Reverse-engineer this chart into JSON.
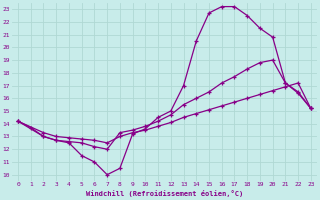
{
  "title": "Windchill (Refroidissement éolien,°C)",
  "bg_color": "#c8ecea",
  "grid_color": "#b0d8d4",
  "line_color": "#880088",
  "xlim": [
    -0.5,
    23.5
  ],
  "ylim": [
    9.5,
    23.5
  ],
  "xticks": [
    0,
    1,
    2,
    3,
    4,
    5,
    6,
    7,
    8,
    9,
    10,
    11,
    12,
    13,
    14,
    15,
    16,
    17,
    18,
    19,
    20,
    21,
    22,
    23
  ],
  "yticks": [
    10,
    11,
    12,
    13,
    14,
    15,
    16,
    17,
    18,
    19,
    20,
    21,
    22,
    23
  ],
  "line1_x": [
    0,
    1,
    2,
    3,
    4,
    5,
    6,
    7,
    8,
    9,
    10,
    11,
    12,
    13,
    14,
    15,
    16,
    17,
    18,
    19,
    20,
    21,
    22,
    23
  ],
  "line1_y": [
    14.2,
    13.7,
    13.0,
    12.7,
    12.5,
    11.5,
    11.0,
    10.0,
    10.5,
    13.2,
    13.6,
    14.5,
    15.0,
    17.0,
    20.5,
    22.7,
    23.2,
    23.2,
    22.5,
    21.5,
    20.8,
    17.2,
    16.4,
    15.2
  ],
  "line2_x": [
    0,
    2,
    3,
    4,
    5,
    6,
    7,
    8,
    9,
    10,
    11,
    12,
    13,
    14,
    15,
    16,
    17,
    18,
    19,
    20,
    21,
    22,
    23
  ],
  "line2_y": [
    14.2,
    13.0,
    12.7,
    12.6,
    12.5,
    12.2,
    12.0,
    13.3,
    13.5,
    13.8,
    14.2,
    14.7,
    15.5,
    16.0,
    16.5,
    17.2,
    17.7,
    18.3,
    18.8,
    19.0,
    17.2,
    16.5,
    15.2
  ],
  "line3_x": [
    0,
    2,
    3,
    4,
    5,
    6,
    7,
    8,
    9,
    10,
    11,
    12,
    13,
    14,
    15,
    16,
    17,
    18,
    19,
    20,
    21,
    22,
    23
  ],
  "line3_y": [
    14.2,
    13.3,
    13.0,
    12.9,
    12.8,
    12.7,
    12.5,
    13.0,
    13.3,
    13.5,
    13.8,
    14.1,
    14.5,
    14.8,
    15.1,
    15.4,
    15.7,
    16.0,
    16.3,
    16.6,
    16.9,
    17.2,
    15.2
  ]
}
